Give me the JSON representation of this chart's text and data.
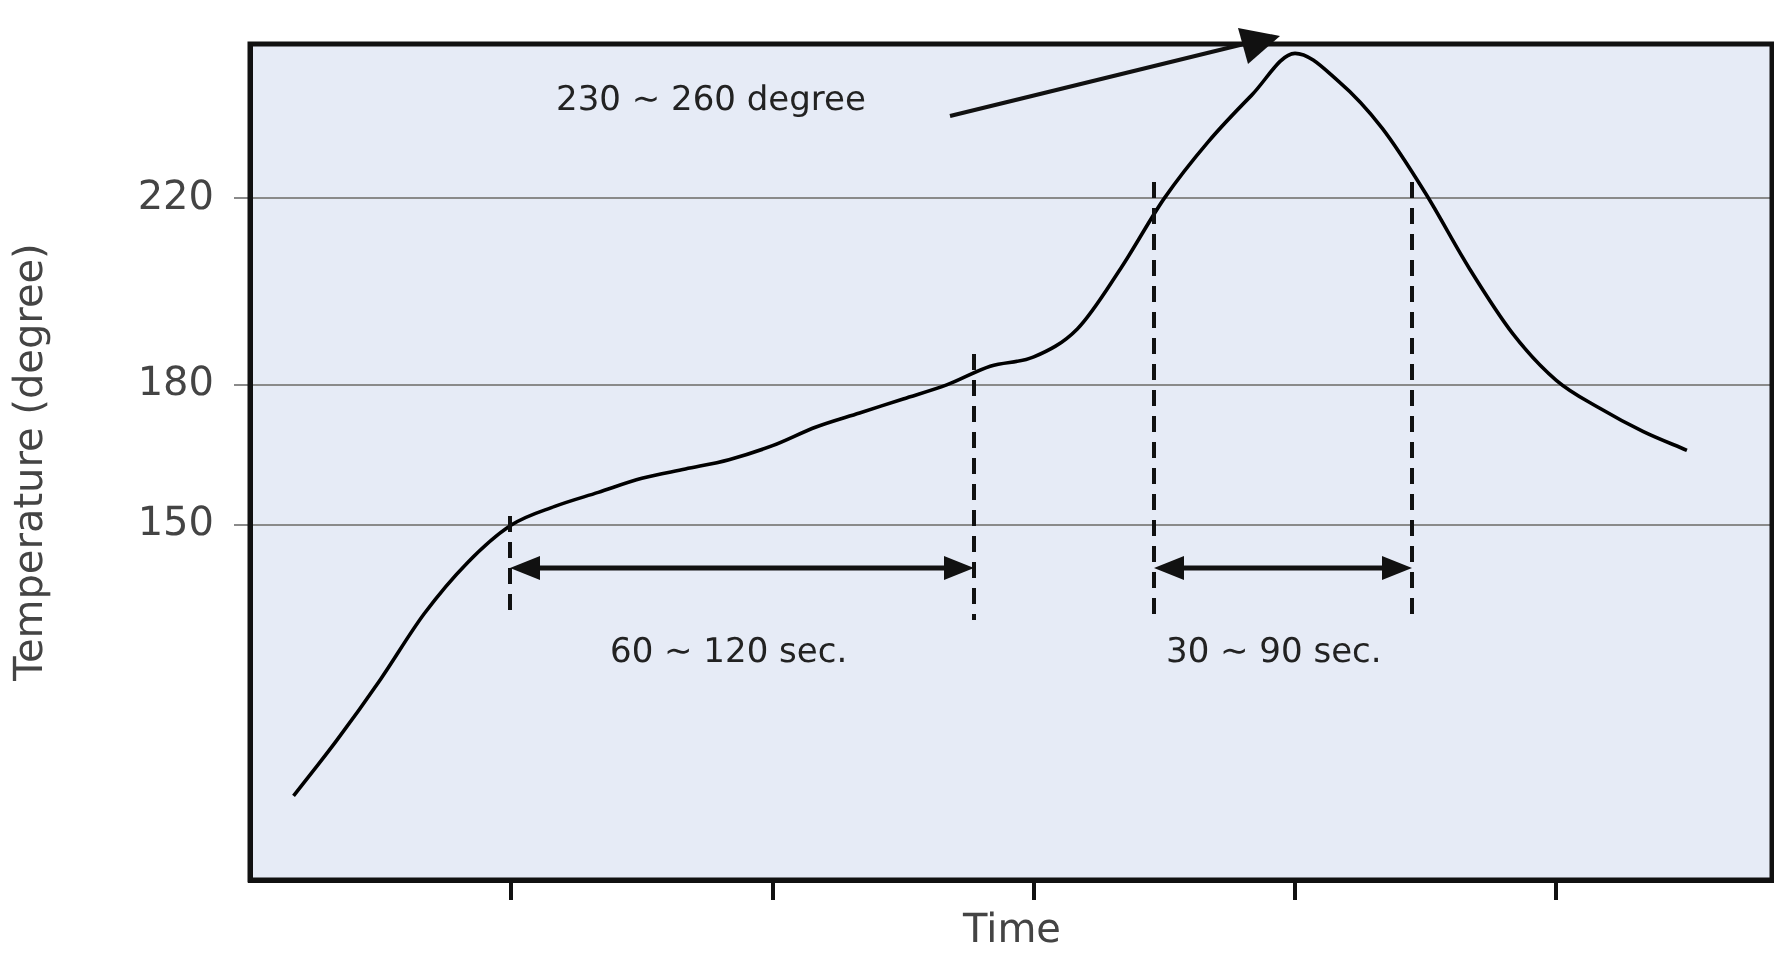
{
  "chart_data": {
    "type": "line",
    "ylabel": "Temperature (degree)",
    "xlabel": "Time",
    "categories": [
      null,
      null,
      null,
      null,
      null,
      null,
      null,
      null,
      null,
      null,
      null,
      null,
      null,
      null,
      null,
      null,
      null,
      null,
      null,
      null,
      null,
      null,
      null,
      null,
      null,
      null,
      null,
      null,
      null,
      null,
      null,
      null,
      null,
      null,
      null,
      null
    ],
    "series": [
      {
        "color": "#000000",
        "values": [
          null,
          92,
          104,
          117,
          131,
          142,
          150,
          154,
          157,
          160,
          162,
          164,
          167,
          171,
          174,
          177,
          180,
          184,
          186,
          192,
          205,
          220,
          232,
          242,
          251,
          245,
          235,
          221,
          205,
          191,
          181,
          175,
          170,
          166,
          null,
          null
        ]
      }
    ],
    "ylim": [
      74,
      253
    ],
    "yticks": [
      150,
      180,
      220
    ],
    "grid": "y",
    "legend": false,
    "marker": "none",
    "line_style": "solid",
    "tick_labels": "y",
    "annotations": [
      "230 ~ 260 degree",
      "60 ~ 120 sec.",
      "30 ~ 90 sec."
    ]
  }
}
